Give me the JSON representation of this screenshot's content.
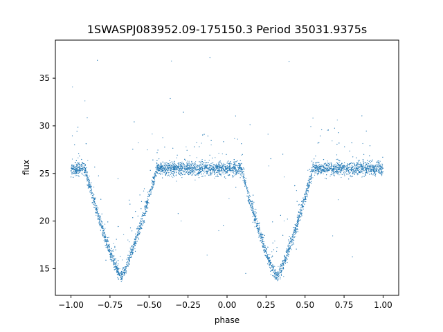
{
  "chart_data": {
    "type": "scatter",
    "title": "1SWASPJ083952.09-175150.3 Period 35031.9375s",
    "xlabel": "phase",
    "ylabel": "flux",
    "xlim": [
      -1.1,
      1.1
    ],
    "ylim": [
      12.2,
      39.0
    ],
    "xticks": [
      -1.0,
      -0.75,
      -0.5,
      -0.25,
      0.0,
      0.25,
      0.5,
      0.75,
      1.0
    ],
    "xtick_labels": [
      "−1.00",
      "−0.75",
      "−0.50",
      "−0.25",
      "0.00",
      "0.25",
      "0.50",
      "0.75",
      "1.00"
    ],
    "yticks": [
      15,
      20,
      25,
      30,
      35
    ],
    "ytick_labels": [
      "15",
      "20",
      "25",
      "30",
      "35"
    ],
    "grid": false,
    "point_color": "#1f77b4",
    "series": [
      {
        "baseline_flux": 25.5,
        "eclipse_centers_phase": [
          -0.68,
          0.32
        ],
        "eclipse_min_flux": 14.2,
        "eclipse_half_width_phase": 0.23
      }
    ]
  }
}
